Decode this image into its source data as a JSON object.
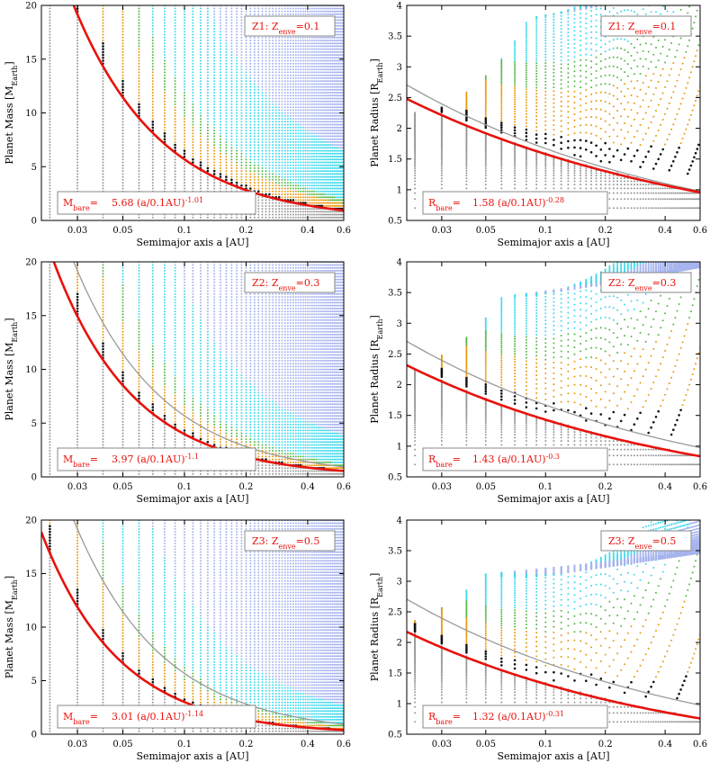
{
  "figure": {
    "panels": [
      {
        "id": "p1",
        "kind": "mass",
        "label_main": "Z1: Z",
        "label_sub": "enve",
        "label_tail": "=0.1",
        "ylabel_main": "Planet Mass [M",
        "ylabel_sub": "Earth",
        "ylabel_tail": "]",
        "xlabel": "Semimajor axis a [AU]",
        "fit_name_main": "M",
        "fit_name_sub": "bare",
        "fit_eq": "=",
        "fit_coef": "5.68",
        "fit_body": "(a/0.1AU)",
        "fit_exp": "-1.01"
      },
      {
        "id": "p2",
        "kind": "radius",
        "label_main": "Z1: Z",
        "label_sub": "enve",
        "label_tail": "=0.1",
        "ylabel_main": "Planet Radius [R",
        "ylabel_sub": "Earth",
        "ylabel_tail": "]",
        "xlabel": "Semimajor axis a [AU]",
        "fit_name_main": "R",
        "fit_name_sub": "bare",
        "fit_eq": "=",
        "fit_coef": "1.58",
        "fit_body": "(a/0.1AU)",
        "fit_exp": "-0.28"
      },
      {
        "id": "p3",
        "kind": "mass",
        "label_main": "Z2: Z",
        "label_sub": "enve",
        "label_tail": "=0.3",
        "ylabel_main": "Planet Mass [M",
        "ylabel_sub": "Earth",
        "ylabel_tail": "]",
        "xlabel": "Semimajor axis a [AU]",
        "fit_name_main": "M",
        "fit_name_sub": "bare",
        "fit_eq": "=",
        "fit_coef": "3.97",
        "fit_body": "(a/0.1AU)",
        "fit_exp": "-1.1"
      },
      {
        "id": "p4",
        "kind": "radius",
        "label_main": "Z2: Z",
        "label_sub": "enve",
        "label_tail": "=0.3",
        "ylabel_main": "Planet Radius [R",
        "ylabel_sub": "Earth",
        "ylabel_tail": "]",
        "xlabel": "Semimajor axis a [AU]",
        "fit_name_main": "R",
        "fit_name_sub": "bare",
        "fit_eq": "=",
        "fit_coef": "1.43",
        "fit_body": "(a/0.1AU)",
        "fit_exp": "-0.3"
      },
      {
        "id": "p5",
        "kind": "mass",
        "label_main": "Z3: Z",
        "label_sub": "enve",
        "label_tail": "=0.5",
        "ylabel_main": "Planet Mass [M",
        "ylabel_sub": "Earth",
        "ylabel_tail": "]",
        "xlabel": "Semimajor axis a [AU]",
        "fit_name_main": "M",
        "fit_name_sub": "bare",
        "fit_eq": "=",
        "fit_coef": "3.01",
        "fit_body": "(a/0.1AU)",
        "fit_exp": "-1.14"
      },
      {
        "id": "p6",
        "kind": "radius",
        "label_main": "Z3: Z",
        "label_sub": "enve",
        "label_tail": "=0.5",
        "ylabel_main": "Planet Radius [R",
        "ylabel_sub": "Earth",
        "ylabel_tail": "]",
        "xlabel": "Semimajor axis a [AU]",
        "fit_name_main": "R",
        "fit_name_sub": "bare",
        "fit_eq": "=",
        "fit_coef": "1.32",
        "fit_body": "(a/0.1AU)",
        "fit_exp": "-0.31"
      }
    ]
  },
  "chart_data": [
    {
      "type": "scatter",
      "panel": "p1",
      "x_scale": "log",
      "xlim": [
        0.02,
        0.6
      ],
      "ylim": [
        0,
        20
      ],
      "x_ticks": [
        0.03,
        0.05,
        0.1,
        0.2,
        0.4,
        0.6
      ],
      "x_tick_labels": [
        "0.03",
        "0.05",
        "0.1",
        "0.2",
        "0.4",
        "0.6"
      ],
      "y_ticks": [
        0,
        5,
        10,
        15,
        20
      ],
      "y_tick_labels": [
        "0",
        "5",
        "10",
        "15",
        "20"
      ],
      "grid": false,
      "fit_curve": {
        "coef": 5.68,
        "exp": -1.01,
        "color": "#e8120c"
      },
      "reference_curve": {
        "coef": 5.68,
        "exp": -1.01,
        "color": "#9a9a9a"
      },
      "threshold": {
        "coef": 5.68,
        "exp": -1.01
      },
      "colors": {
        "bare": "#999999",
        "black": "#111111",
        "orange": "#e89a10",
        "green": "#56b848",
        "cyan": "#3fd9ec",
        "lavender": "#a6b4ee"
      }
    },
    {
      "type": "scatter",
      "panel": "p2",
      "x_scale": "log",
      "xlim": [
        0.02,
        0.6
      ],
      "ylim": [
        0.5,
        4
      ],
      "x_ticks": [
        0.03,
        0.05,
        0.1,
        0.2,
        0.4,
        0.6
      ],
      "x_tick_labels": [
        "0.03",
        "0.05",
        "0.1",
        "0.2",
        "0.4",
        "0.6"
      ],
      "y_ticks": [
        0.5,
        1,
        1.5,
        2,
        2.5,
        3,
        3.5,
        4
      ],
      "y_tick_labels": [
        "0.5",
        "1",
        "1.5",
        "2",
        "2.5",
        "3",
        "3.5",
        "4"
      ],
      "grid": false,
      "fit_curve": {
        "coef": 1.58,
        "exp": -0.28,
        "color": "#e8120c"
      },
      "reference_curve": {
        "coef": 1.67,
        "exp": -0.3,
        "color": "#9a9a9a"
      },
      "threshold": {
        "coef": 5.68,
        "exp": -1.01
      },
      "colors": {
        "bare": "#999999",
        "black": "#111111",
        "orange": "#e89a10",
        "green": "#56b848",
        "cyan": "#3fd9ec",
        "lavender": "#a6b4ee"
      }
    },
    {
      "type": "scatter",
      "panel": "p3",
      "x_scale": "log",
      "xlim": [
        0.02,
        0.6
      ],
      "ylim": [
        0,
        20
      ],
      "x_ticks": [
        0.03,
        0.05,
        0.1,
        0.2,
        0.4,
        0.6
      ],
      "x_tick_labels": [
        "0.03",
        "0.05",
        "0.1",
        "0.2",
        "0.4",
        "0.6"
      ],
      "y_ticks": [
        0,
        5,
        10,
        15,
        20
      ],
      "y_tick_labels": [
        "0",
        "5",
        "10",
        "15",
        "20"
      ],
      "grid": false,
      "fit_curve": {
        "coef": 3.97,
        "exp": -1.1,
        "color": "#e8120c"
      },
      "reference_curve": {
        "coef": 5.68,
        "exp": -1.01,
        "color": "#9a9a9a"
      },
      "threshold": {
        "coef": 3.97,
        "exp": -1.1
      },
      "colors": {
        "bare": "#999999",
        "black": "#111111",
        "orange": "#e89a10",
        "green": "#56b848",
        "cyan": "#3fd9ec",
        "lavender": "#a6b4ee"
      }
    },
    {
      "type": "scatter",
      "panel": "p4",
      "x_scale": "log",
      "xlim": [
        0.02,
        0.6
      ],
      "ylim": [
        0.5,
        4
      ],
      "x_ticks": [
        0.03,
        0.05,
        0.1,
        0.2,
        0.4,
        0.6
      ],
      "x_tick_labels": [
        "0.03",
        "0.05",
        "0.1",
        "0.2",
        "0.4",
        "0.6"
      ],
      "y_ticks": [
        0.5,
        1,
        1.5,
        2,
        2.5,
        3,
        3.5,
        4
      ],
      "y_tick_labels": [
        "0.5",
        "1",
        "1.5",
        "2",
        "2.5",
        "3",
        "3.5",
        "4"
      ],
      "grid": false,
      "fit_curve": {
        "coef": 1.43,
        "exp": -0.3,
        "color": "#e8120c"
      },
      "reference_curve": {
        "coef": 1.67,
        "exp": -0.3,
        "color": "#9a9a9a"
      },
      "threshold": {
        "coef": 3.97,
        "exp": -1.1
      },
      "colors": {
        "bare": "#999999",
        "black": "#111111",
        "orange": "#e89a10",
        "green": "#56b848",
        "cyan": "#3fd9ec",
        "lavender": "#a6b4ee"
      }
    },
    {
      "type": "scatter",
      "panel": "p5",
      "x_scale": "log",
      "xlim": [
        0.02,
        0.6
      ],
      "ylim": [
        0,
        20
      ],
      "x_ticks": [
        0.03,
        0.05,
        0.1,
        0.2,
        0.4,
        0.6
      ],
      "x_tick_labels": [
        "0.03",
        "0.05",
        "0.1",
        "0.2",
        "0.4",
        "0.6"
      ],
      "y_ticks": [
        0,
        5,
        10,
        15,
        20
      ],
      "y_tick_labels": [
        "0",
        "5",
        "10",
        "15",
        "20"
      ],
      "grid": false,
      "fit_curve": {
        "coef": 3.01,
        "exp": -1.14,
        "color": "#e8120c"
      },
      "reference_curve": {
        "coef": 5.68,
        "exp": -1.01,
        "color": "#9a9a9a"
      },
      "threshold": {
        "coef": 3.01,
        "exp": -1.14
      },
      "colors": {
        "bare": "#999999",
        "black": "#111111",
        "orange": "#e89a10",
        "green": "#56b848",
        "cyan": "#3fd9ec",
        "lavender": "#a6b4ee"
      }
    },
    {
      "type": "scatter",
      "panel": "p6",
      "x_scale": "log",
      "xlim": [
        0.02,
        0.6
      ],
      "ylim": [
        0.5,
        4
      ],
      "x_ticks": [
        0.03,
        0.05,
        0.1,
        0.2,
        0.4,
        0.6
      ],
      "x_tick_labels": [
        "0.03",
        "0.05",
        "0.1",
        "0.2",
        "0.4",
        "0.6"
      ],
      "y_ticks": [
        0.5,
        1,
        1.5,
        2,
        2.5,
        3,
        3.5,
        4
      ],
      "y_tick_labels": [
        "0.5",
        "1",
        "1.5",
        "2",
        "2.5",
        "3",
        "3.5",
        "4"
      ],
      "grid": false,
      "fit_curve": {
        "coef": 1.32,
        "exp": -0.31,
        "color": "#e8120c"
      },
      "reference_curve": {
        "coef": 1.67,
        "exp": -0.3,
        "color": "#9a9a9a"
      },
      "threshold": {
        "coef": 3.01,
        "exp": -1.14
      },
      "colors": {
        "bare": "#999999",
        "black": "#111111",
        "orange": "#e89a10",
        "green": "#56b848",
        "cyan": "#3fd9ec",
        "lavender": "#a6b4ee"
      }
    }
  ]
}
